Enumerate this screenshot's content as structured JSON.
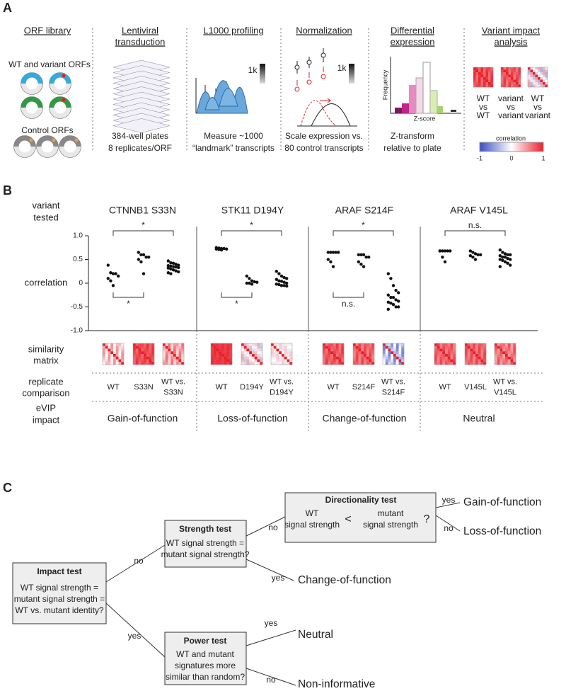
{
  "panel_a": {
    "label": "A",
    "orf_library": {
      "title": "ORF library",
      "wt_variant": "WT and variant ORFs",
      "control": "Control ORFs"
    },
    "lentiviral": {
      "title": [
        "Lentiviral",
        "transduction"
      ],
      "caption": [
        "384-well plates",
        "8 replicates/ORF"
      ]
    },
    "l1000": {
      "title": "L1000 profiling",
      "scale": "1k",
      "caption": [
        "Measure ~1000",
        "“landmark” transcripts"
      ]
    },
    "normalization": {
      "title": "Normalization",
      "scale": "1k",
      "caption": [
        "Scale expression vs.",
        "80 control transcripts"
      ]
    },
    "differential": {
      "title": [
        "Differential",
        "expression"
      ],
      "y_axis": "Frequency",
      "x_axis": "Z-score",
      "caption": [
        "Z-transform",
        "relative to plate"
      ]
    },
    "impact": {
      "title": [
        "Variant impact",
        "analysis"
      ],
      "matrices": [
        [
          "WT",
          "vs",
          "WT"
        ],
        [
          "variant",
          "vs",
          "variant"
        ],
        [
          "WT",
          "vs",
          "variant"
        ]
      ],
      "colorbar": {
        "title": "correlation",
        "ticks": [
          "-1",
          "0",
          "1"
        ]
      }
    }
  },
  "panel_b": {
    "label": "B",
    "row_labels": {
      "variant_tested": [
        "variant",
        "tested"
      ],
      "correlation": "correlation",
      "similarity": [
        "similarity",
        "matrix"
      ],
      "replicate": [
        "replicate",
        "comparison"
      ],
      "impact": [
        "eVIP",
        "impact"
      ]
    },
    "ylim": [
      -1,
      1
    ],
    "yticks": [
      {
        "value": 1,
        "label": "1.0"
      },
      0.5,
      0,
      -0.5,
      {
        "value": -1,
        "label": "-1.0"
      }
    ],
    "variants": [
      {
        "name": "CTNNB1 S33N",
        "top_bracket": "*",
        "bottom_bracket": "*",
        "impact": "Gain-of-function",
        "groups": [
          {
            "label": [
              "WT"
            ],
            "values": [
              0.38,
              0.22,
              0.2,
              0.2,
              0.15,
              0.1,
              0.05,
              -0.05
            ]
          },
          {
            "label": [
              "S33N"
            ],
            "values": [
              0.65,
              0.6,
              0.6,
              0.55,
              0.55,
              0.5,
              0.45,
              0.2
            ]
          },
          {
            "label": [
              "WT vs.",
              "S33N"
            ],
            "values": [
              0.47,
              0.43,
              0.42,
              0.4,
              0.38,
              0.37,
              0.36,
              0.35,
              0.34,
              0.33,
              0.32,
              0.3,
              0.28,
              0.26,
              0.24,
              0.22,
              0.2
            ]
          }
        ]
      },
      {
        "name": "STK11 D194Y",
        "top_bracket": "*",
        "bottom_bracket": "*",
        "impact": "Loss-of-function",
        "groups": [
          {
            "label": [
              "WT"
            ],
            "values": [
              0.75,
              0.74,
              0.73,
              0.73,
              0.72,
              0.72,
              0.71,
              0.7
            ]
          },
          {
            "label": [
              "D194Y"
            ],
            "values": [
              0.15,
              0.1,
              0.05,
              0.03,
              0.02,
              0.0,
              0.0,
              -0.02
            ]
          },
          {
            "label": [
              "WT vs.",
              "D194Y"
            ],
            "values": [
              0.25,
              0.2,
              0.15,
              0.12,
              0.1,
              0.08,
              0.05,
              0.04,
              0.02,
              0.0,
              -0.02,
              -0.03,
              -0.05,
              -0.05,
              -0.06
            ]
          }
        ]
      },
      {
        "name": "ARAF S214F",
        "top_bracket": "*",
        "bottom_bracket": "n.s.",
        "impact": "Change-of-function",
        "groups": [
          {
            "label": [
              "WT"
            ],
            "values": [
              0.65,
              0.65,
              0.65,
              0.65,
              0.65,
              0.5,
              0.45,
              0.35
            ]
          },
          {
            "label": [
              "S214F"
            ],
            "values": [
              0.6,
              0.6,
              0.6,
              0.55,
              0.55,
              0.45,
              0.4,
              0.35
            ]
          },
          {
            "label": [
              "WT vs.",
              "S214F"
            ],
            "values": [
              0.2,
              0.1,
              -0.05,
              -0.15,
              -0.2,
              -0.25,
              -0.3,
              -0.3,
              -0.35,
              -0.38,
              -0.4,
              -0.42,
              -0.45,
              -0.5,
              -0.5,
              -0.55
            ]
          }
        ]
      },
      {
        "name": "ARAF V145L",
        "top_bracket": "n.s.",
        "impact": "Neutral",
        "groups": [
          {
            "label": [
              "WT"
            ],
            "values": [
              0.68,
              0.68,
              0.68,
              0.68,
              0.68,
              0.68,
              0.55,
              0.45
            ]
          },
          {
            "label": [
              "V145L"
            ],
            "values": [
              0.68,
              0.65,
              0.62,
              0.6,
              0.6,
              0.58,
              0.55,
              0.5
            ]
          },
          {
            "label": [
              "WT vs.",
              "V145L"
            ],
            "values": [
              0.7,
              0.65,
              0.62,
              0.6,
              0.6,
              0.58,
              0.55,
              0.55,
              0.52,
              0.5,
              0.5,
              0.48,
              0.45,
              0.42,
              0.38,
              0.35
            ]
          }
        ]
      }
    ]
  },
  "panel_c": {
    "label": "C",
    "impact_test": {
      "title": "Impact test",
      "text": [
        "WT signal strength =",
        "mutant signal strength =",
        "WT vs. mutant identity?"
      ]
    },
    "strength_test": {
      "title": "Strength test",
      "text": [
        "WT signal strength =",
        "mutant signal strength?"
      ]
    },
    "directionality_test": {
      "title": "Directionality test",
      "left": [
        "WT",
        "signal strength"
      ],
      "operator": "<",
      "right": [
        "mutant",
        "signal strength"
      ],
      "question": "?"
    },
    "power_test": {
      "title": "Power test",
      "text": [
        "WT and mutant",
        "signatures more",
        "similar than random?"
      ]
    },
    "edges": {
      "impact_no": "no",
      "impact_yes": "yes",
      "strength_no": "no",
      "strength_yes": "yes",
      "direction_yes": "yes",
      "direction_no": "no",
      "power_yes": "yes",
      "power_no": "no"
    },
    "outcomes": {
      "gain": "Gain-of-function",
      "loss": "Loss-of-function",
      "change": "Change-of-function",
      "neutral": "Neutral",
      "noninformative": "Non-informative"
    }
  }
}
